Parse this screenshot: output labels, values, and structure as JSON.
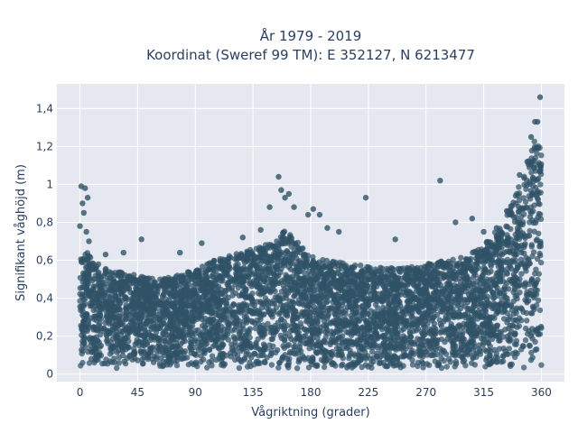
{
  "chart_data": {
    "type": "scatter",
    "title": "År 1979 - 2019",
    "subtitle": "Koordinat (Sweref 99 TM): E 352127, N 6213477",
    "xlabel": "Vågriktning (grader)",
    "ylabel": "Signifikant våghöjd (m)",
    "xlim": [
      -18,
      378
    ],
    "ylim": [
      -0.04,
      1.53
    ],
    "x_ticks": [
      0,
      45,
      90,
      135,
      180,
      225,
      270,
      315,
      360
    ],
    "x_tick_labels": [
      "0",
      "45",
      "90",
      "135",
      "180",
      "225",
      "270",
      "315",
      "360"
    ],
    "y_ticks": [
      0,
      0.2,
      0.4,
      0.6,
      0.8,
      1.0,
      1.2,
      1.4
    ],
    "y_tick_labels": [
      "0",
      "0,2",
      "0,4",
      "0,6",
      "0,8",
      "1",
      "1,2",
      "1,4"
    ],
    "grid": true,
    "marker_color": "#2f5266",
    "background_color": "#e5e8f0",
    "envelope": {
      "x": [
        0,
        5,
        10,
        20,
        30,
        45,
        60,
        75,
        90,
        105,
        120,
        135,
        150,
        160,
        170,
        180,
        195,
        210,
        225,
        240,
        255,
        270,
        285,
        300,
        315,
        330,
        340,
        350,
        355,
        360
      ],
      "max_y": [
        0.62,
        0.65,
        0.6,
        0.56,
        0.54,
        0.52,
        0.5,
        0.52,
        0.55,
        0.6,
        0.63,
        0.66,
        0.7,
        0.76,
        0.7,
        0.62,
        0.6,
        0.58,
        0.57,
        0.56,
        0.56,
        0.58,
        0.6,
        0.62,
        0.68,
        0.8,
        0.95,
        1.12,
        1.25,
        1.18
      ]
    },
    "outliers": {
      "x": [
        1,
        4,
        2,
        6,
        3,
        0,
        7,
        5,
        20,
        34,
        48,
        78,
        95,
        127,
        141,
        148,
        155,
        157,
        160,
        163,
        167,
        178,
        182,
        187,
        193,
        202,
        223,
        246,
        281,
        293,
        306,
        315,
        325,
        333,
        340,
        343,
        349,
        352,
        355,
        357,
        359
      ],
      "y": [
        0.99,
        0.98,
        0.9,
        0.93,
        0.85,
        0.78,
        0.7,
        0.75,
        0.63,
        0.64,
        0.71,
        0.64,
        0.69,
        0.72,
        0.76,
        0.88,
        1.04,
        0.97,
        0.93,
        0.95,
        0.88,
        0.84,
        0.87,
        0.84,
        0.77,
        0.75,
        0.93,
        0.71,
        1.02,
        0.8,
        0.82,
        0.75,
        0.77,
        0.86,
        0.94,
        1.05,
        1.12,
        1.25,
        1.33,
        1.33,
        1.46
      ]
    }
  }
}
